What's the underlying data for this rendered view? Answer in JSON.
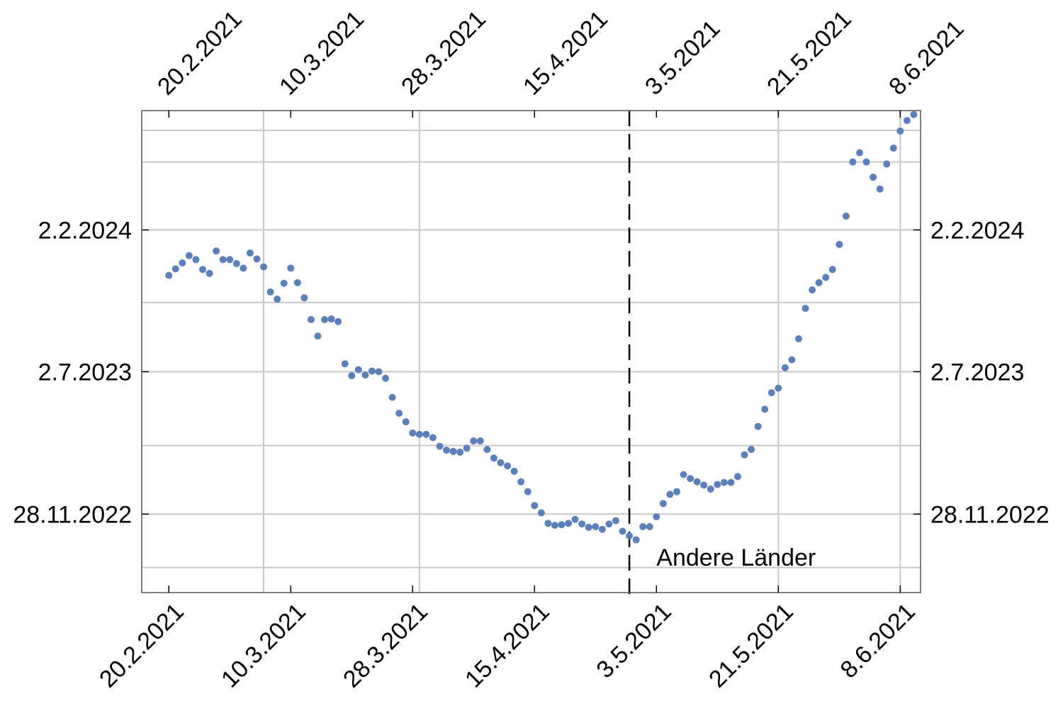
{
  "chart_data": {
    "type": "scatter",
    "title": "",
    "xlabel": "",
    "ylabel": "",
    "x_axis": {
      "kind": "date",
      "range": [
        "2021-02-16",
        "2021-06-11"
      ],
      "tick_dates": [
        "2021-02-20",
        "2021-03-10",
        "2021-03-28",
        "2021-04-15",
        "2021-05-03",
        "2021-05-21",
        "2021-06-08"
      ],
      "tick_labels": [
        "20.2.2021",
        "10.3.2021",
        "28.3.2021",
        "15.4.2021",
        "3.5.2021",
        "21.5.2021",
        "8.6.2021"
      ],
      "label_position": "top and bottom, rotated 45°",
      "grid_dates": [
        "2021-03-06",
        "2021-03-29",
        "2021-05-21",
        "2021-06-08"
      ]
    },
    "y_axis": {
      "kind": "date",
      "range": [
        "2022-08-01",
        "2024-08-01"
      ],
      "tick_dates": [
        "2022-11-28",
        "2023-07-02",
        "2024-02-02"
      ],
      "tick_labels": [
        "28.11.2022",
        "2.7.2023",
        "2.2.2024"
      ],
      "label_position": "left and right",
      "grid_dates": [
        "2022-09-08",
        "2022-11-28",
        "2023-03-12",
        "2023-07-02",
        "2023-10-15",
        "2024-02-02",
        "2024-05-15",
        "2024-07-02"
      ]
    },
    "grid": true,
    "reference_line": {
      "x": "2021-04-29",
      "style": "dashed"
    },
    "annotation": {
      "text": "Andere Länder",
      "x": "2021-05-03",
      "y": "2022-09-24"
    },
    "series": [
      {
        "color": "#5B80BA",
        "x": [
          "2021-02-20",
          "2021-02-21",
          "2021-02-22",
          "2021-02-23",
          "2021-02-24",
          "2021-02-25",
          "2021-02-26",
          "2021-02-27",
          "2021-02-28",
          "2021-03-01",
          "2021-03-02",
          "2021-03-03",
          "2021-03-04",
          "2021-03-05",
          "2021-03-06",
          "2021-03-07",
          "2021-03-08",
          "2021-03-09",
          "2021-03-10",
          "2021-03-11",
          "2021-03-12",
          "2021-03-13",
          "2021-03-14",
          "2021-03-15",
          "2021-03-16",
          "2021-03-17",
          "2021-03-18",
          "2021-03-19",
          "2021-03-20",
          "2021-03-21",
          "2021-03-22",
          "2021-03-23",
          "2021-03-24",
          "2021-03-25",
          "2021-03-26",
          "2021-03-27",
          "2021-03-28",
          "2021-03-29",
          "2021-03-30",
          "2021-03-31",
          "2021-04-01",
          "2021-04-02",
          "2021-04-03",
          "2021-04-04",
          "2021-04-05",
          "2021-04-06",
          "2021-04-07",
          "2021-04-08",
          "2021-04-09",
          "2021-04-10",
          "2021-04-11",
          "2021-04-12",
          "2021-04-13",
          "2021-04-14",
          "2021-04-15",
          "2021-04-16",
          "2021-04-17",
          "2021-04-18",
          "2021-04-19",
          "2021-04-20",
          "2021-04-21",
          "2021-04-22",
          "2021-04-23",
          "2021-04-24",
          "2021-04-25",
          "2021-04-26",
          "2021-04-27",
          "2021-04-28",
          "2021-04-29",
          "2021-04-30",
          "2021-05-01",
          "2021-05-02",
          "2021-05-03",
          "2021-05-04",
          "2021-05-05",
          "2021-05-06",
          "2021-05-07",
          "2021-05-08",
          "2021-05-09",
          "2021-05-10",
          "2021-05-11",
          "2021-05-12",
          "2021-05-13",
          "2021-05-14",
          "2021-05-15",
          "2021-05-16",
          "2021-05-17",
          "2021-05-18",
          "2021-05-19",
          "2021-05-20",
          "2021-05-21",
          "2021-05-22",
          "2021-05-23",
          "2021-05-24",
          "2021-05-25",
          "2021-05-26",
          "2021-05-27",
          "2021-05-28",
          "2021-05-29",
          "2021-05-30",
          "2021-05-31",
          "2021-06-01",
          "2021-06-02",
          "2021-06-03",
          "2021-06-04",
          "2021-06-05",
          "2021-06-06",
          "2021-06-07",
          "2021-06-08",
          "2021-06-09",
          "2021-06-10"
        ],
        "y": [
          "2023-11-25",
          "2023-12-05",
          "2023-12-14",
          "2023-12-25",
          "2023-12-19",
          "2023-12-04",
          "2023-11-28",
          "2024-01-01",
          "2023-12-19",
          "2023-12-19",
          "2023-12-13",
          "2023-12-06",
          "2023-12-29",
          "2023-12-20",
          "2023-12-08",
          "2023-10-31",
          "2023-10-20",
          "2023-11-13",
          "2023-12-06",
          "2023-11-14",
          "2023-10-22",
          "2023-09-19",
          "2023-08-25",
          "2023-09-19",
          "2023-09-20",
          "2023-09-16",
          "2023-07-14",
          "2023-06-26",
          "2023-07-05",
          "2023-06-27",
          "2023-07-03",
          "2023-07-02",
          "2023-06-22",
          "2023-05-24",
          "2023-04-30",
          "2023-04-17",
          "2023-03-31",
          "2023-03-29",
          "2023-03-29",
          "2023-03-24",
          "2023-03-11",
          "2023-03-05",
          "2023-03-03",
          "2023-03-02",
          "2023-03-08",
          "2023-03-19",
          "2023-03-19",
          "2023-03-06",
          "2023-02-21",
          "2023-02-14",
          "2023-02-09",
          "2023-02-01",
          "2023-01-16",
          "2023-01-01",
          "2022-12-11",
          "2022-11-30",
          "2022-11-14",
          "2022-11-11",
          "2022-11-12",
          "2022-11-14",
          "2022-11-20",
          "2022-11-13",
          "2022-11-08",
          "2022-11-09",
          "2022-11-05",
          "2022-11-13",
          "2022-11-18",
          "2022-11-02",
          "2022-10-26",
          "2022-10-20",
          "2022-11-09",
          "2022-11-09",
          "2022-11-24",
          "2022-12-14",
          "2022-12-28",
          "2023-01-01",
          "2023-01-27",
          "2023-01-21",
          "2023-01-16",
          "2023-01-11",
          "2023-01-05",
          "2023-01-12",
          "2023-01-15",
          "2023-01-15",
          "2023-01-24",
          "2023-02-26",
          "2023-03-06",
          "2023-04-10",
          "2023-05-06",
          "2023-05-31",
          "2023-06-07",
          "2023-07-08",
          "2023-07-20",
          "2023-08-21",
          "2023-10-06",
          "2023-11-03",
          "2023-11-14",
          "2023-11-22",
          "2023-12-04",
          "2024-01-11",
          "2024-02-23",
          "2024-05-15",
          "2024-05-29",
          "2024-05-15",
          "2024-04-22",
          "2024-04-04",
          "2024-05-12",
          "2024-06-05",
          "2024-06-31",
          "2024-07-17",
          "2024-07-26"
        ]
      }
    ]
  }
}
